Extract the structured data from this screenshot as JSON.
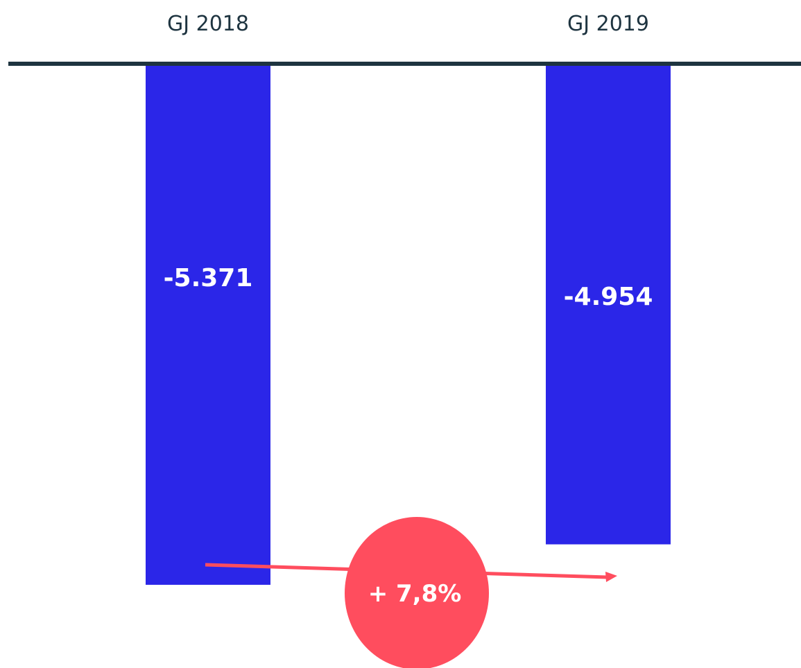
{
  "chart_data": {
    "type": "bar",
    "categories": [
      "GJ 2018",
      "GJ 2019"
    ],
    "values": [
      -5371,
      -4954
    ],
    "data_labels": [
      "-5.371",
      "-4.954"
    ],
    "ylim": [
      -5600,
      0
    ],
    "grid": false,
    "legend": "none",
    "annotation": {
      "text": "+ 7,8%"
    },
    "colors": {
      "bar": "#2B26E8",
      "axis": "#1E3440",
      "category_text": "#1E3440",
      "value_text": "#ffffff",
      "accent": "#FF4D5E",
      "badge_text": "#ffffff"
    }
  }
}
